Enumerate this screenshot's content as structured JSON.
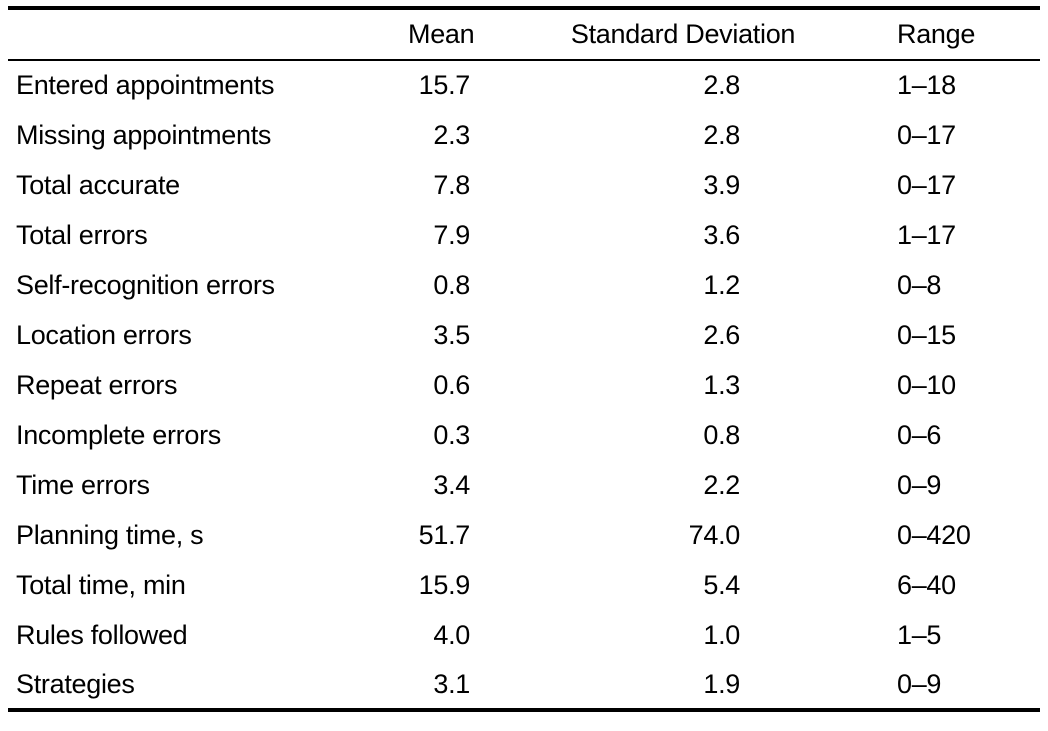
{
  "table": {
    "columns": [
      "",
      "Mean",
      "Standard Deviation",
      "Range"
    ],
    "rows": [
      {
        "label": "Entered appointments",
        "mean": "15.7",
        "sd": "2.8",
        "range": "1–18"
      },
      {
        "label": "Missing appointments",
        "mean": "2.3",
        "sd": "2.8",
        "range": "0–17"
      },
      {
        "label": "Total accurate",
        "mean": "7.8",
        "sd": "3.9",
        "range": "0–17"
      },
      {
        "label": "Total errors",
        "mean": "7.9",
        "sd": "3.6",
        "range": "1–17"
      },
      {
        "label": "Self-recognition errors",
        "mean": "0.8",
        "sd": "1.2",
        "range": "0–8"
      },
      {
        "label": "Location errors",
        "mean": "3.5",
        "sd": "2.6",
        "range": "0–15"
      },
      {
        "label": "Repeat errors",
        "mean": "0.6",
        "sd": "1.3",
        "range": "0–10"
      },
      {
        "label": "Incomplete errors",
        "mean": "0.3",
        "sd": "0.8",
        "range": "0–6"
      },
      {
        "label": "Time errors",
        "mean": "3.4",
        "sd": "2.2",
        "range": "0–9"
      },
      {
        "label": "Planning time, s",
        "mean": "51.7",
        "sd": "74.0",
        "range": "0–420"
      },
      {
        "label": "Total time, min",
        "mean": "15.9",
        "sd": "5.4",
        "range": "6–40"
      },
      {
        "label": "Rules followed",
        "mean": "4.0",
        "sd": "1.0",
        "range": "1–5"
      },
      {
        "label": "Strategies",
        "mean": "3.1",
        "sd": "1.9",
        "range": "0–9"
      }
    ],
    "colors": {
      "text": "#000000",
      "background": "#ffffff",
      "rule": "#000000"
    }
  }
}
